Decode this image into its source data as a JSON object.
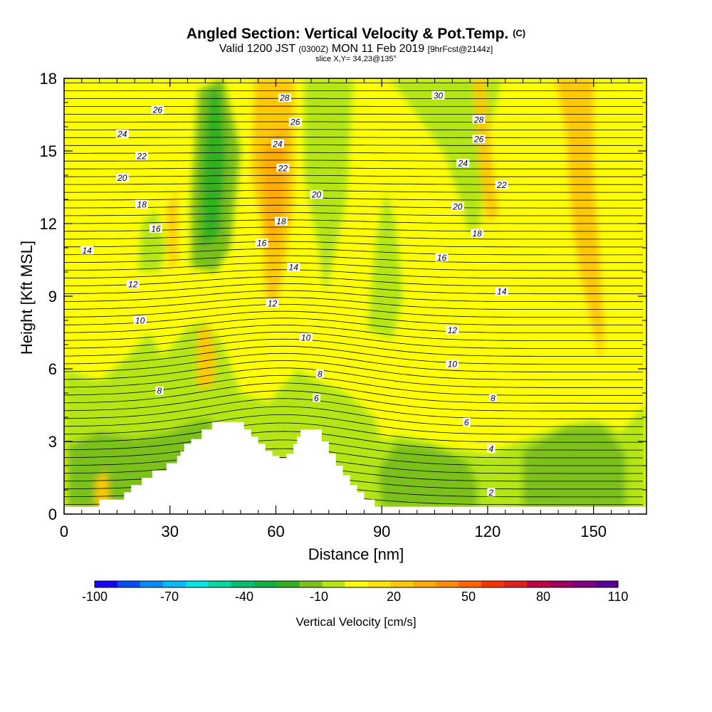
{
  "chart_data": {
    "type": "heatmap",
    "title": "Angled Section: Vertical Velocity & Pot.Temp.",
    "title_units": "(C)",
    "subtitle": {
      "valid": "Valid 1200 JST",
      "utc": "(0300Z)",
      "date": "MON 11 Feb 2019",
      "fcst": "[9hrFcst@2144z]"
    },
    "slice": "slice X,Y= 34,23@135°",
    "xlabel": "Distance [nm]",
    "ylabel": "Height [Kft MSL]",
    "xlim": [
      0,
      165
    ],
    "ylim": [
      0,
      18
    ],
    "x_ticks": [
      "0",
      "30",
      "60",
      "90",
      "120",
      "150"
    ],
    "y_ticks": [
      "0",
      "3",
      "6",
      "9",
      "12",
      "15",
      "18"
    ],
    "colorbar": {
      "label": "Vertical Velocity [cm/s]",
      "tick_labels": [
        "-100",
        "-70",
        "-40",
        "-10",
        "20",
        "50",
        "80",
        "110"
      ],
      "colors": [
        "#1a00ff",
        "#0050ff",
        "#008cff",
        "#00bcff",
        "#00e6e6",
        "#00d8a0",
        "#00c070",
        "#10b040",
        "#30b020",
        "#7cc01e",
        "#b4e614",
        "#ffff00",
        "#ffe600",
        "#ffc800",
        "#ffaa00",
        "#ff8c00",
        "#ff6400",
        "#ff3200",
        "#e01e1e",
        "#c00040",
        "#a00060",
        "#800080",
        "#5a0096"
      ]
    },
    "terrain_profile": [
      [
        10,
        0.6
      ],
      [
        13,
        0.6
      ],
      [
        16,
        0.6
      ],
      [
        17,
        0.9
      ],
      [
        19,
        1.2
      ],
      [
        22,
        1.5
      ],
      [
        24,
        1.5
      ],
      [
        25,
        1.8
      ],
      [
        27,
        1.8
      ],
      [
        29,
        2.1
      ],
      [
        31,
        2.1
      ],
      [
        32,
        2.4
      ],
      [
        33,
        2.6
      ],
      [
        34,
        2.9
      ],
      [
        36,
        3.1
      ],
      [
        39,
        3.5
      ],
      [
        42,
        3.8
      ],
      [
        45,
        3.8
      ],
      [
        47,
        3.8
      ],
      [
        50,
        3.8
      ],
      [
        51,
        3.5
      ],
      [
        53,
        3.2
      ],
      [
        55,
        2.9
      ],
      [
        57,
        2.6
      ],
      [
        59,
        2.4
      ],
      [
        61,
        2.3
      ],
      [
        63,
        2.5
      ],
      [
        65,
        2.9
      ],
      [
        66,
        3.2
      ],
      [
        67,
        3.5
      ],
      [
        70,
        3.5
      ],
      [
        72,
        3.5
      ],
      [
        73,
        3.0
      ],
      [
        75,
        2.5
      ],
      [
        77,
        2.0
      ],
      [
        79,
        1.6
      ],
      [
        81,
        1.2
      ],
      [
        83,
        0.9
      ],
      [
        85,
        0.6
      ],
      [
        88,
        0.3
      ],
      [
        91,
        0.3
      ]
    ],
    "isotherm_labels": [
      {
        "v": "26",
        "x": 26.5,
        "y": 16.7
      },
      {
        "v": "24",
        "x": 16.5,
        "y": 15.7
      },
      {
        "v": "22",
        "x": 22,
        "y": 14.8
      },
      {
        "v": "20",
        "x": 16.5,
        "y": 13.9
      },
      {
        "v": "18",
        "x": 22,
        "y": 12.8
      },
      {
        "v": "16",
        "x": 26,
        "y": 11.8
      },
      {
        "v": "14",
        "x": 6.5,
        "y": 10.9
      },
      {
        "v": "12",
        "x": 19.5,
        "y": 9.5
      },
      {
        "v": "10",
        "x": 21.5,
        "y": 8.0
      },
      {
        "v": "8",
        "x": 27,
        "y": 5.1
      },
      {
        "v": "28",
        "x": 62.5,
        "y": 17.2
      },
      {
        "v": "26",
        "x": 65.5,
        "y": 16.2
      },
      {
        "v": "24",
        "x": 60.5,
        "y": 15.3
      },
      {
        "v": "22",
        "x": 62,
        "y": 14.3
      },
      {
        "v": "20",
        "x": 71.5,
        "y": 13.2
      },
      {
        "v": "18",
        "x": 61.5,
        "y": 12.1
      },
      {
        "v": "16",
        "x": 56,
        "y": 11.2
      },
      {
        "v": "14",
        "x": 65,
        "y": 10.2
      },
      {
        "v": "12",
        "x": 59,
        "y": 8.7
      },
      {
        "v": "10",
        "x": 68.5,
        "y": 7.3
      },
      {
        "v": "8",
        "x": 72.5,
        "y": 5.8
      },
      {
        "v": "6",
        "x": 71.5,
        "y": 4.8
      },
      {
        "v": "30",
        "x": 106,
        "y": 17.3
      },
      {
        "v": "28",
        "x": 117.5,
        "y": 16.3
      },
      {
        "v": "26",
        "x": 117.5,
        "y": 15.5
      },
      {
        "v": "24",
        "x": 113,
        "y": 14.5
      },
      {
        "v": "22",
        "x": 124,
        "y": 13.6
      },
      {
        "v": "20",
        "x": 111.5,
        "y": 12.7
      },
      {
        "v": "18",
        "x": 117,
        "y": 11.6
      },
      {
        "v": "16",
        "x": 107,
        "y": 10.6
      },
      {
        "v": "14",
        "x": 124,
        "y": 9.2
      },
      {
        "v": "12",
        "x": 110,
        "y": 7.6
      },
      {
        "v": "10",
        "x": 110,
        "y": 6.2
      },
      {
        "v": "8",
        "x": 121.5,
        "y": 4.8
      },
      {
        "v": "6",
        "x": 114,
        "y": 3.8
      },
      {
        "v": "4",
        "x": 121,
        "y": 2.7
      },
      {
        "v": "2",
        "x": 121,
        "y": 0.9
      }
    ]
  }
}
